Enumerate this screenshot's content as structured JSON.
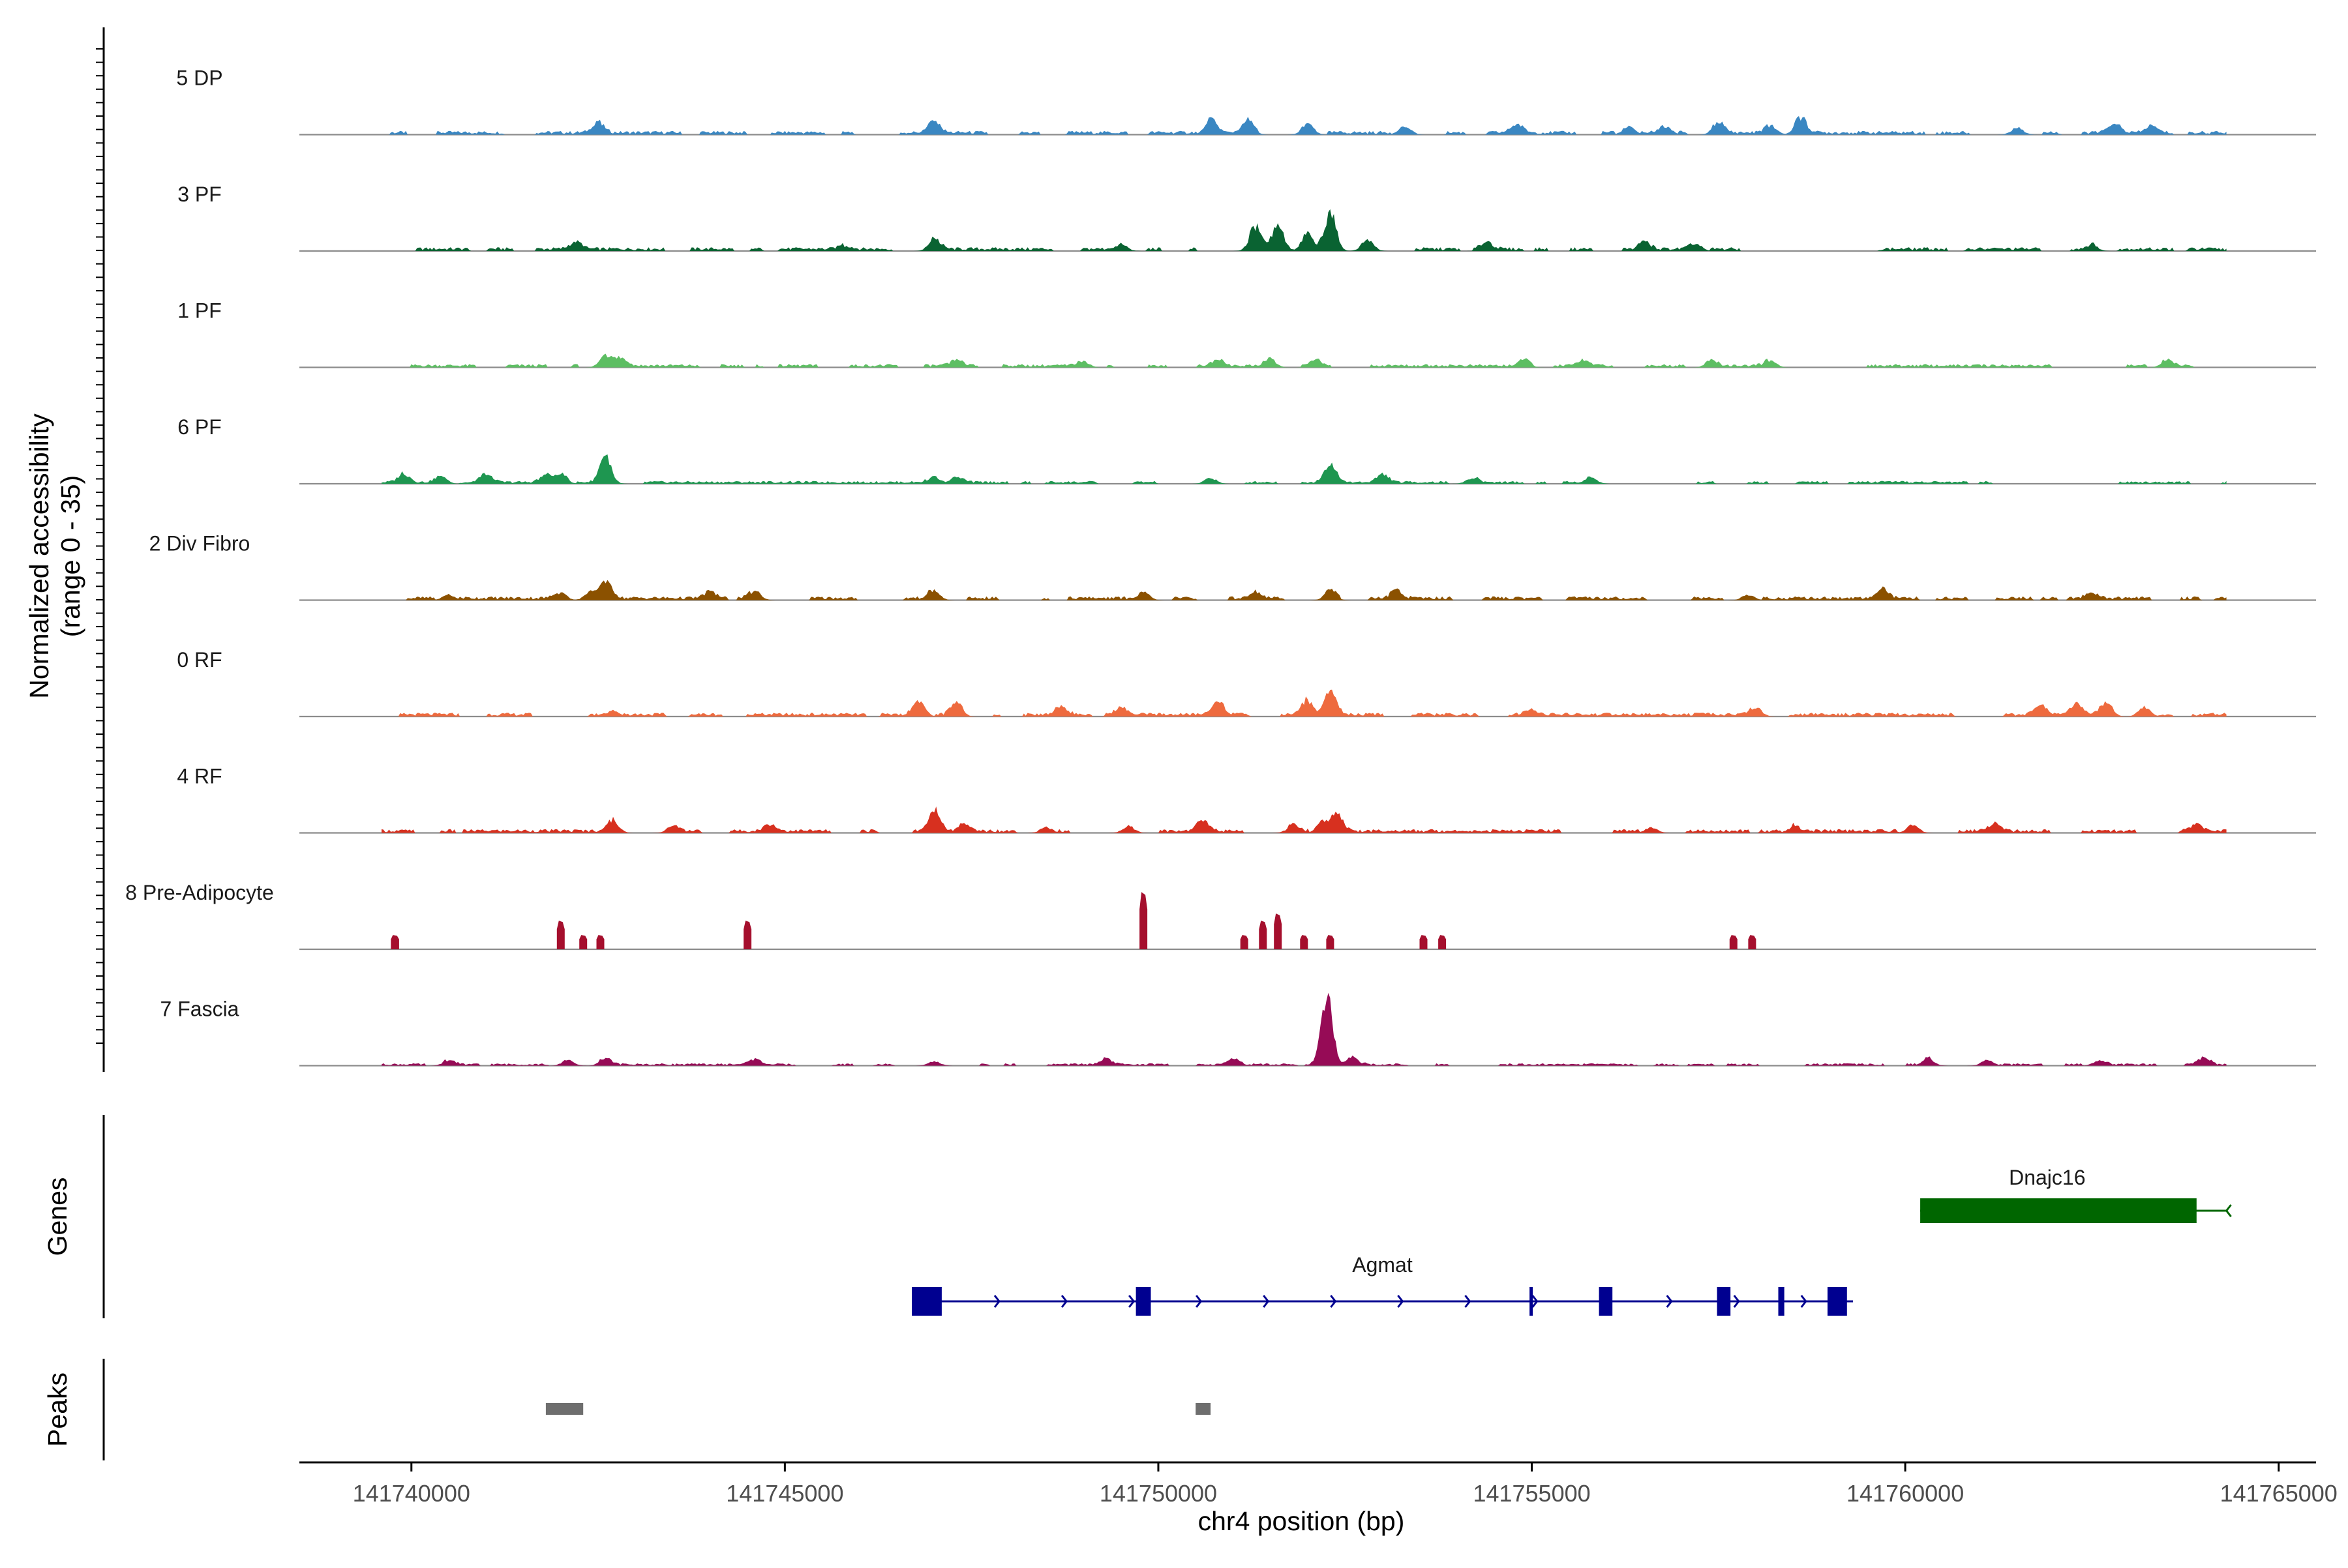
{
  "chart_data": {
    "type": "area",
    "title": "",
    "ylabel": "Normalized accessibility\n(range 0 - 35)",
    "ylim": [
      0,
      35
    ],
    "xlabel": "chr4 position (bp)",
    "xlim": [
      141738500,
      141765500
    ],
    "x_ticks": [
      141740000,
      141745000,
      141750000,
      141755000,
      141760000,
      141765000
    ],
    "x_tick_labels": [
      "141740000",
      "141745000",
      "141750000",
      "141755000",
      "141760000",
      "141765000"
    ],
    "data_range": [
      141739600,
      141764300
    ],
    "series": [
      {
        "name": "5 DP",
        "color": "#3A87C2",
        "baseline": 0.8,
        "peaks": [
          [
            141742500,
            4.5
          ],
          [
            141747000,
            5
          ],
          [
            141750700,
            6
          ],
          [
            141751200,
            5.5
          ],
          [
            141752000,
            5
          ],
          [
            141753300,
            4
          ],
          [
            141754800,
            4
          ],
          [
            141756300,
            4
          ],
          [
            141756800,
            3.5
          ],
          [
            141757500,
            4.5
          ],
          [
            141758200,
            4
          ],
          [
            141758600,
            7
          ],
          [
            141761500,
            3
          ],
          [
            141762800,
            4
          ],
          [
            141763300,
            3
          ]
        ]
      },
      {
        "name": "3 PF",
        "color": "#0A6332",
        "baseline": 0.8,
        "peaks": [
          [
            141742200,
            3.5
          ],
          [
            141745800,
            2
          ],
          [
            141747000,
            5
          ],
          [
            141749500,
            3
          ],
          [
            141751300,
            11
          ],
          [
            141751600,
            12
          ],
          [
            141752000,
            8
          ],
          [
            141752300,
            17
          ],
          [
            141752800,
            5
          ],
          [
            141754400,
            3
          ],
          [
            141756500,
            5
          ],
          [
            141757200,
            3
          ],
          [
            141762500,
            2
          ]
        ]
      },
      {
        "name": "1 PF",
        "color": "#5DBE63",
        "baseline": 0.7,
        "peaks": [
          [
            141742600,
            5.5
          ],
          [
            141742800,
            4
          ],
          [
            141747300,
            2.5
          ],
          [
            141749000,
            2.5
          ],
          [
            141750800,
            2.5
          ],
          [
            141751500,
            3
          ],
          [
            141752100,
            2.5
          ],
          [
            141754900,
            2.5
          ],
          [
            141755700,
            2.5
          ],
          [
            141757400,
            2.5
          ],
          [
            141758200,
            3
          ],
          [
            141763500,
            2.5
          ]
        ]
      },
      {
        "name": "6 PF",
        "color": "#1E9650",
        "baseline": 0.6,
        "peaks": [
          [
            141739900,
            4
          ],
          [
            141740400,
            3
          ],
          [
            141741000,
            4
          ],
          [
            141741800,
            4
          ],
          [
            141742000,
            5
          ],
          [
            141742600,
            12
          ],
          [
            141747000,
            3
          ],
          [
            141747300,
            3
          ],
          [
            141750700,
            2.5
          ],
          [
            141752300,
            8
          ],
          [
            141753000,
            3.5
          ],
          [
            141754200,
            2.5
          ],
          [
            141755800,
            2.5
          ]
        ]
      },
      {
        "name": "2 Div Fibro",
        "color": "#8B5100",
        "baseline": 0.8,
        "peaks": [
          [
            141740500,
            2.5
          ],
          [
            141742000,
            3
          ],
          [
            141742400,
            3.5
          ],
          [
            141742600,
            9
          ],
          [
            141744000,
            3
          ],
          [
            141744600,
            4
          ],
          [
            141747000,
            4
          ],
          [
            141749800,
            3.5
          ],
          [
            141751300,
            3
          ],
          [
            141752300,
            4
          ],
          [
            141753200,
            4.5
          ],
          [
            141757900,
            2.5
          ],
          [
            141759700,
            4
          ],
          [
            141762500,
            2.5
          ]
        ]
      },
      {
        "name": "0 RF",
        "color": "#EE6A3E",
        "baseline": 0.8,
        "peaks": [
          [
            141742700,
            2.5
          ],
          [
            141746800,
            6
          ],
          [
            141747300,
            5
          ],
          [
            141748700,
            4
          ],
          [
            141749500,
            3
          ],
          [
            141750800,
            6
          ],
          [
            141752000,
            7
          ],
          [
            141752300,
            12
          ],
          [
            141755000,
            2.5
          ],
          [
            141758000,
            4
          ],
          [
            141761800,
            4
          ],
          [
            141762300,
            4.5
          ],
          [
            141762700,
            6
          ],
          [
            141763200,
            4
          ]
        ]
      },
      {
        "name": "4 RF",
        "color": "#D7301F",
        "baseline": 0.8,
        "peaks": [
          [
            141742700,
            5
          ],
          [
            141743500,
            3
          ],
          [
            141744800,
            3
          ],
          [
            141747000,
            9
          ],
          [
            141747400,
            3
          ],
          [
            141748500,
            2.5
          ],
          [
            141749600,
            3
          ],
          [
            141750600,
            5
          ],
          [
            141751800,
            3
          ],
          [
            141752200,
            5
          ],
          [
            141752400,
            9
          ],
          [
            141756600,
            2.5
          ],
          [
            141758500,
            2.5
          ],
          [
            141760100,
            3.5
          ],
          [
            141761200,
            3
          ],
          [
            141763900,
            3
          ]
        ]
      },
      {
        "name": "8 Pre-Adipocyte",
        "color": "#A50F2D",
        "baseline": 0,
        "bars": [
          [
            141739780,
            6,
            110
          ],
          [
            141742000,
            12,
            90
          ],
          [
            141742300,
            6,
            90
          ],
          [
            141742530,
            6,
            90
          ],
          [
            141744500,
            12,
            90
          ],
          [
            141749800,
            24,
            100
          ],
          [
            141751150,
            6,
            90
          ],
          [
            141751400,
            12,
            90
          ],
          [
            141751600,
            15,
            90
          ],
          [
            141751950,
            6,
            90
          ],
          [
            141752300,
            6,
            90
          ],
          [
            141753550,
            6,
            90
          ],
          [
            141753800,
            6,
            90
          ],
          [
            141757700,
            6,
            90
          ],
          [
            141757950,
            6,
            90
          ]
        ]
      },
      {
        "name": "7 Fascia",
        "color": "#960B56",
        "baseline": 0.5,
        "peaks": [
          [
            141740500,
            2
          ],
          [
            141742100,
            2.5
          ],
          [
            141742600,
            3
          ],
          [
            141744600,
            2.5
          ],
          [
            141747000,
            2
          ],
          [
            141749300,
            2.5
          ],
          [
            141751000,
            2.5
          ],
          [
            141752260,
            28
          ],
          [
            141752600,
            4
          ],
          [
            141760300,
            3
          ],
          [
            141761100,
            2.5
          ],
          [
            141762600,
            2.5
          ],
          [
            141764000,
            3
          ]
        ]
      }
    ],
    "genes_label": "Genes",
    "genes": [
      {
        "name": "Dnajc16",
        "color": "#006600",
        "start": 141760200,
        "end": 141764300,
        "strand": "-",
        "exons": [
          [
            141760200,
            141763900
          ]
        ]
      },
      {
        "name": "Agmat",
        "color": "#000090",
        "start": 141746700,
        "end": 141759300,
        "strand": "+",
        "exons": [
          [
            141746700,
            141747100
          ],
          [
            141749700,
            141749900
          ],
          [
            141754970,
            141755010
          ],
          [
            141755900,
            141756080
          ],
          [
            141757480,
            141757660
          ],
          [
            141758300,
            141758380
          ],
          [
            141758960,
            141759220
          ]
        ]
      }
    ],
    "peaks_label": "Peaks",
    "peak_regions": [
      [
        141741800,
        141742300
      ],
      [
        141750500,
        141750700
      ]
    ],
    "panel_y_ticks": 75
  }
}
